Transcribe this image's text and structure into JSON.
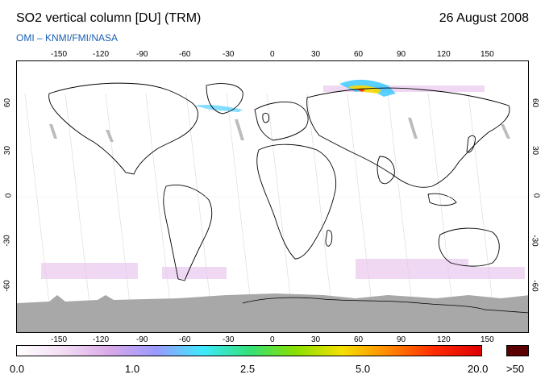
{
  "header": {
    "title": "SO2 vertical column [DU] (TRM)",
    "date": "26 August 2008",
    "subtitle": "OMI  –  KNMI/FMI/NASA"
  },
  "map": {
    "lon_ticks": [
      "-150",
      "-120",
      "-90",
      "-60",
      "-30",
      "0",
      "30",
      "60",
      "90",
      "120",
      "150"
    ],
    "lat_ticks": [
      "60",
      "30",
      "0",
      "-30",
      "-60"
    ],
    "colors": {
      "land_outline": "#000000",
      "polar_gray": "#a8a8a8",
      "background": "#ffffff"
    }
  },
  "colorbar": {
    "labels": [
      "0.0",
      "1.0",
      "2.5",
      "5.0",
      "20.0"
    ],
    "overflow_label": ">50",
    "overflow_color": "#5a0000",
    "gradient": [
      "#ffffff",
      "#f3dcf3",
      "#d9a8e8",
      "#9a9aff",
      "#3fe9ff",
      "#33e07a",
      "#88e000",
      "#f5e000",
      "#ff8800",
      "#ff2a00",
      "#e00000"
    ]
  }
}
